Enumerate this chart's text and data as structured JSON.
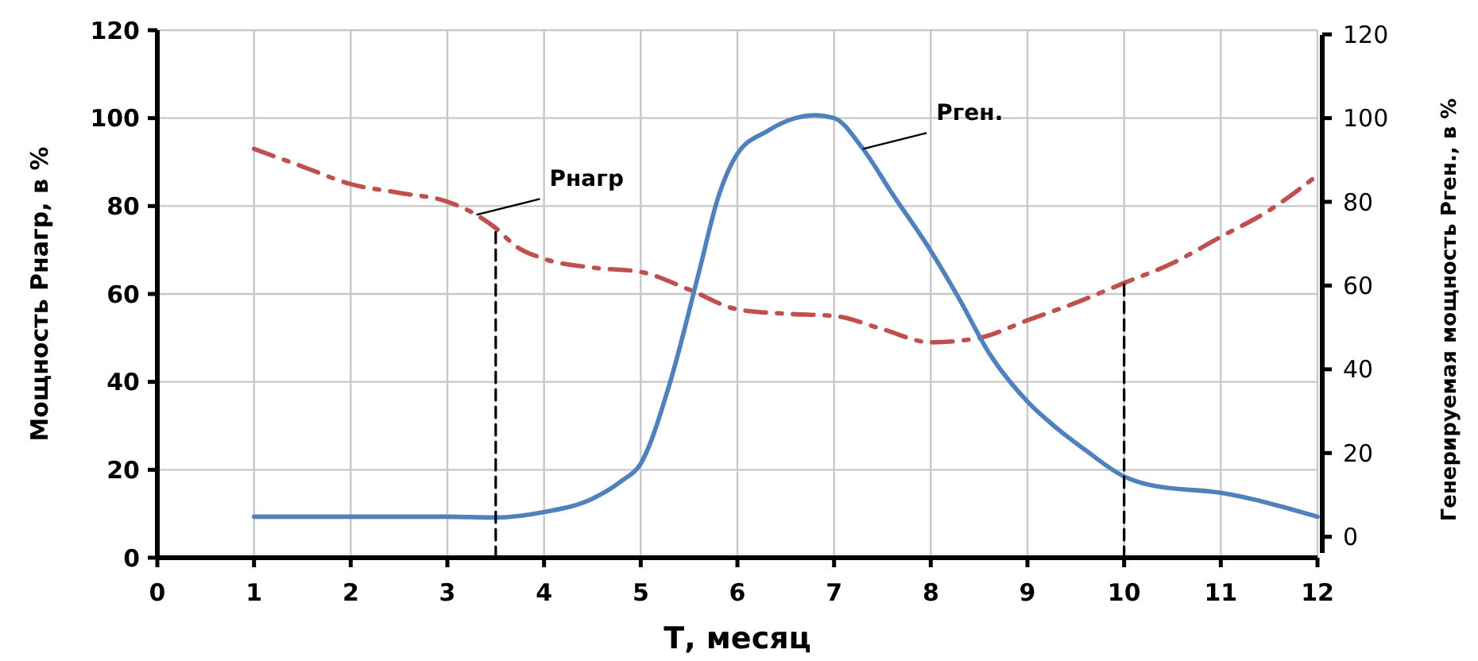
{
  "chart_data": {
    "type": "line",
    "xlabel": "Т, месяц",
    "ylabel": "Мощность Рнагр, в %",
    "y2label": "Генерируемая мощность Рген., в %",
    "xlim": [
      0,
      12
    ],
    "xticks": [
      0,
      1,
      2,
      3,
      4,
      5,
      6,
      7,
      8,
      9,
      10,
      11,
      12
    ],
    "ylim": [
      0,
      120
    ],
    "yticks": [
      0,
      20,
      40,
      60,
      80,
      100,
      120
    ],
    "y2lim": [
      -5,
      121
    ],
    "y2ticks": [
      0,
      20,
      40,
      60,
      80,
      100,
      120
    ],
    "grid": true,
    "marker": "none",
    "series": [
      {
        "color": "#c0504d",
        "line_style": "dashed",
        "x": [
          1,
          1.5,
          2,
          2.5,
          3,
          3.3,
          3.5,
          3.7,
          4,
          4.5,
          5,
          5.5,
          6,
          6.5,
          7,
          7.5,
          8,
          8.5,
          9,
          9.5,
          10,
          10.5,
          11,
          11.5,
          12
        ],
        "values": [
          93,
          89,
          85,
          83,
          81,
          78,
          75,
          71,
          68,
          66,
          65,
          61,
          56.5,
          55.5,
          55,
          52,
          49,
          50,
          54,
          58,
          62.5,
          67,
          73,
          79,
          87
        ]
      },
      {
        "color": "#4f81bd",
        "line_style": "solid",
        "axis": "y2",
        "x": [
          1,
          2,
          3,
          3.5,
          4,
          4.5,
          4.8,
          5,
          5.3,
          5.6,
          5.8,
          6,
          6.3,
          6.6,
          6.8,
          7,
          7.3,
          7.6,
          8,
          8.3,
          8.6,
          9,
          9.3,
          9.6,
          10,
          10.3,
          11,
          12
        ],
        "values": [
          4.8,
          4.8,
          4.8,
          4.6,
          5.9,
          9.1,
          13.3,
          17.5,
          36.6,
          63,
          81,
          91.5,
          96.8,
          100,
          100.7,
          100,
          92.6,
          82,
          68.3,
          56.6,
          44,
          32.3,
          26,
          20.7,
          14.4,
          12.2,
          10.5,
          4.8
        ]
      },
      {
        "color": "#000000",
        "line_style": "dashed",
        "x": [
          3.5,
          3.5
        ],
        "values": [
          0,
          75
        ]
      },
      {
        "color": "#000000",
        "line_style": "dashed",
        "x": [
          10,
          10
        ],
        "values": [
          0,
          62.5
        ]
      }
    ],
    "annotations": [
      {
        "text": "Рнагр",
        "x": 3.3,
        "y": 78
      },
      {
        "text": "Рген.",
        "x": 7.3,
        "y": 93
      }
    ]
  }
}
